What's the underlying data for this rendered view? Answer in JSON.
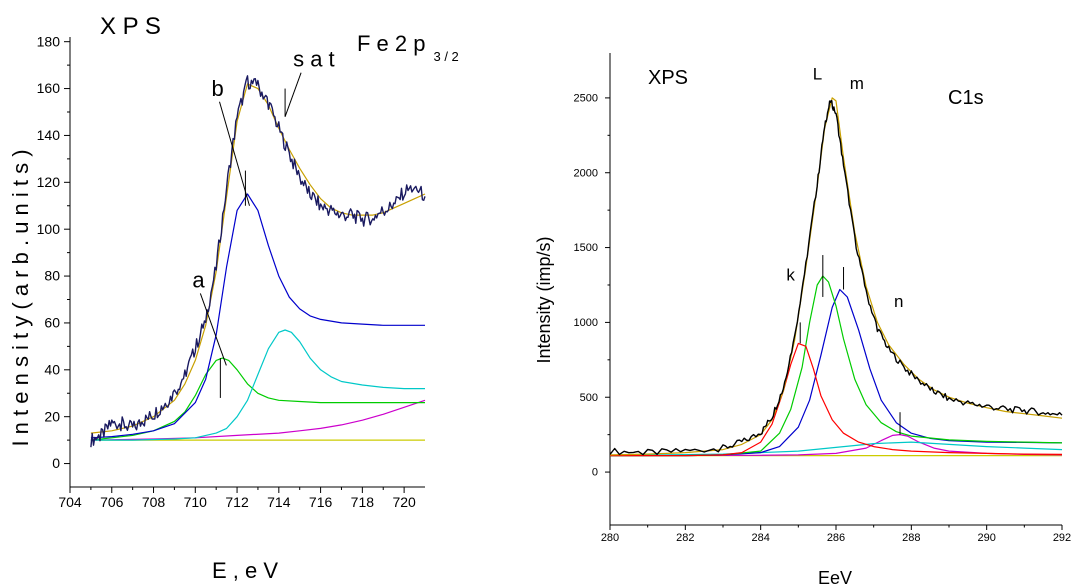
{
  "chart_data": [
    {
      "type": "line",
      "title": "X P S",
      "subtitle_main": "F e 2 p",
      "subtitle_sub": "3 / 2",
      "xlabel": "E , e V",
      "ylabel": "I n t e n s i t y   ( a r b . u n i t s )",
      "xlim": [
        704,
        721
      ],
      "ylim": [
        -10,
        182
      ],
      "x_ticks": [
        704,
        706,
        708,
        710,
        712,
        714,
        716,
        718,
        720
      ],
      "y_ticks": [
        0,
        20,
        40,
        60,
        80,
        100,
        120,
        140,
        160,
        180
      ],
      "grid": false,
      "annotations": [
        {
          "text": "a",
          "x": 711.2,
          "y": 41
        },
        {
          "text": "b",
          "x": 712.5,
          "y": 110
        },
        {
          "text": "s a t",
          "x": 714.3,
          "y": 148
        }
      ],
      "series": [
        {
          "color": "#1a1a60",
          "noisy": true,
          "x": [
            705,
            705.5,
            706,
            706.5,
            707,
            707.5,
            708,
            708.5,
            709,
            709.5,
            710,
            710.5,
            711,
            711.5,
            712,
            712.5,
            713,
            713.5,
            714,
            714.5,
            715,
            715.5,
            716,
            716.5,
            717,
            717.5,
            718,
            718.5,
            719,
            719.5,
            720,
            720.5,
            721
          ],
          "y": [
            10,
            12,
            17,
            17,
            15,
            18,
            21,
            25,
            30,
            38,
            49,
            62,
            84,
            118,
            148,
            163,
            161,
            154,
            143,
            132,
            122,
            115,
            110,
            108,
            106,
            106,
            104,
            105,
            108,
            110,
            116,
            118,
            114
          ]
        },
        {
          "color": "#c8a000",
          "x": [
            705,
            706,
            707,
            708,
            709,
            709.5,
            710,
            710.5,
            711,
            711.5,
            712,
            712.5,
            713,
            713.5,
            714,
            714.5,
            715,
            715.5,
            716,
            716.5,
            717,
            717.5,
            718,
            718.5,
            719,
            719.5,
            720,
            720.5,
            721
          ],
          "y": [
            13,
            14,
            16,
            20,
            27,
            34,
            44,
            59,
            82,
            114,
            146,
            162,
            160,
            153,
            143,
            134,
            126,
            119,
            113,
            109,
            107,
            106,
            106,
            106,
            107,
            109,
            111,
            113,
            115
          ]
        },
        {
          "color": "#0000cc",
          "x": [
            705,
            706,
            707,
            708,
            709,
            710,
            710.5,
            711,
            711.5,
            712,
            712.5,
            713,
            713.5,
            714,
            714.5,
            715,
            715.5,
            716,
            717,
            718,
            719,
            720,
            721
          ],
          "y": [
            11,
            11.5,
            12.5,
            14,
            17,
            26,
            36,
            55,
            84,
            108,
            115,
            108,
            93,
            80,
            71,
            66,
            63,
            61.5,
            60,
            59.5,
            59,
            59,
            59
          ]
        },
        {
          "color": "#00c8c8",
          "x": [
            705,
            707,
            709,
            710,
            711,
            711.5,
            712,
            712.5,
            713,
            713.5,
            714,
            714.3,
            714.6,
            715,
            715.5,
            716,
            716.5,
            717,
            718,
            719,
            720,
            721
          ],
          "y": [
            10,
            10,
            10.5,
            11,
            13,
            15,
            20,
            27,
            38,
            49,
            56,
            57,
            56,
            52,
            45,
            40,
            37,
            35,
            33.5,
            32.5,
            32,
            32
          ]
        },
        {
          "color": "#00cc00",
          "x": [
            705,
            706,
            707,
            708,
            709,
            709.5,
            710,
            710.5,
            711,
            711.3,
            711.6,
            712,
            712.5,
            713,
            713.5,
            714,
            715,
            716,
            717,
            718,
            719,
            720,
            721
          ],
          "y": [
            10,
            11,
            12,
            14,
            18,
            22,
            29,
            38,
            44,
            45,
            44,
            40,
            34,
            30,
            28,
            27,
            26.5,
            26,
            26,
            26,
            26,
            26,
            26
          ]
        },
        {
          "color": "#cc00cc",
          "x": [
            705,
            708,
            710,
            712,
            714,
            715,
            716,
            717,
            718,
            719,
            720,
            721
          ],
          "y": [
            10,
            10.5,
            11,
            12,
            13,
            14,
            15,
            16.5,
            18.5,
            21,
            24,
            27
          ]
        },
        {
          "color": "#cccc00",
          "x": [
            705,
            721
          ],
          "y": [
            10,
            10
          ]
        }
      ]
    },
    {
      "type": "line",
      "title": "XPS",
      "label_right": "C1s",
      "xlabel": "EeV",
      "ylabel": "Intensity (imp/s)",
      "xlim": [
        280,
        292
      ],
      "ylim": [
        -200,
        2800
      ],
      "x_ticks": [
        280,
        282,
        284,
        286,
        288,
        290,
        292
      ],
      "y_ticks": [
        0,
        500,
        1000,
        1500,
        2000,
        2500
      ],
      "grid": false,
      "annotations": [
        {
          "text": "k",
          "x": 285.0,
          "y": 1160
        },
        {
          "text": "L",
          "x": 285.7,
          "y": 2530
        },
        {
          "text": "m",
          "x": 286.1,
          "y": 2520
        },
        {
          "text": "n",
          "x": 287.7,
          "y": 1010
        }
      ],
      "series": [
        {
          "color": "#000000",
          "noisy": true,
          "x": [
            280,
            281,
            282,
            283,
            283.5,
            284,
            284.3,
            284.6,
            284.9,
            285.2,
            285.5,
            285.7,
            285.85,
            286,
            286.2,
            286.5,
            286.8,
            287.1,
            287.4,
            287.8,
            288.2,
            288.6,
            289,
            289.5,
            290,
            290.5,
            291,
            291.5,
            292
          ],
          "y": [
            140,
            130,
            140,
            160,
            200,
            260,
            370,
            560,
            900,
            1390,
            1920,
            2320,
            2480,
            2400,
            2050,
            1560,
            1200,
            960,
            820,
            700,
            610,
            540,
            490,
            460,
            440,
            420,
            410,
            400,
            380
          ]
        },
        {
          "color": "#c8a000",
          "x": [
            280,
            281,
            282,
            283,
            283.5,
            284,
            284.3,
            284.6,
            284.9,
            285.2,
            285.5,
            285.7,
            285.9,
            286,
            286.2,
            286.5,
            286.8,
            287.1,
            287.4,
            287.8,
            288.2,
            288.6,
            289,
            289.5,
            290,
            290.5,
            291,
            291.5,
            292
          ],
          "y": [
            115,
            120,
            130,
            150,
            185,
            250,
            350,
            540,
            880,
            1370,
            1910,
            2300,
            2500,
            2480,
            2100,
            1600,
            1240,
            1000,
            850,
            720,
            620,
            550,
            500,
            460,
            430,
            405,
            390,
            375,
            360
          ]
        },
        {
          "color": "#ff0000",
          "x": [
            280,
            282,
            283,
            283.5,
            284,
            284.3,
            284.6,
            284.8,
            285.0,
            285.2,
            285.4,
            285.6,
            285.9,
            286.2,
            286.6,
            287,
            287.5,
            288,
            289,
            290,
            291,
            292
          ],
          "y": [
            110,
            110,
            115,
            130,
            200,
            320,
            540,
            720,
            860,
            840,
            690,
            510,
            350,
            260,
            200,
            170,
            150,
            140,
            130,
            125,
            120,
            118
          ]
        },
        {
          "color": "#00cc00",
          "x": [
            280,
            282,
            283,
            284,
            284.5,
            284.8,
            285.1,
            285.3,
            285.5,
            285.65,
            285.8,
            286,
            286.2,
            286.5,
            286.8,
            287.2,
            287.6,
            288,
            289,
            290,
            291,
            292
          ],
          "y": [
            110,
            110,
            115,
            140,
            260,
            420,
            700,
            1000,
            1250,
            1310,
            1270,
            1110,
            890,
            620,
            450,
            330,
            270,
            240,
            215,
            205,
            200,
            195
          ]
        },
        {
          "color": "#0000cc",
          "x": [
            280,
            282,
            283,
            284,
            284.5,
            285,
            285.3,
            285.6,
            285.9,
            286.1,
            286.3,
            286.6,
            286.9,
            287.2,
            287.6,
            288,
            288.5,
            289,
            290,
            291,
            292
          ],
          "y": [
            110,
            110,
            115,
            130,
            170,
            300,
            480,
            780,
            1100,
            1220,
            1170,
            950,
            690,
            480,
            330,
            260,
            225,
            210,
            200,
            198,
            195
          ]
        },
        {
          "color": "#00c8c8",
          "x": [
            280,
            283,
            285,
            286,
            287,
            288,
            289,
            290,
            291,
            292
          ],
          "y": [
            110,
            120,
            140,
            165,
            190,
            200,
            185,
            170,
            160,
            150
          ]
        },
        {
          "color": "#cc00cc",
          "x": [
            280,
            284,
            285,
            286,
            286.8,
            287.2,
            287.5,
            287.7,
            287.9,
            288.2,
            288.6,
            289,
            290,
            291,
            292
          ],
          "y": [
            110,
            112,
            115,
            125,
            160,
            210,
            245,
            250,
            240,
            200,
            160,
            140,
            125,
            118,
            115
          ]
        },
        {
          "color": "#cccc00",
          "x": [
            280,
            292
          ],
          "y": [
            110,
            110
          ]
        }
      ]
    }
  ]
}
